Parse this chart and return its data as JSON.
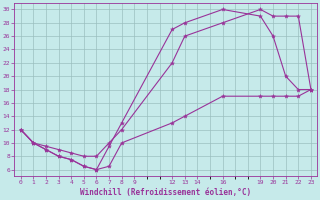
{
  "xlabel": "Windchill (Refroidissement éolien,°C)",
  "background_color": "#c6eaea",
  "line_color": "#993399",
  "grid_color": "#9bbfbf",
  "xlim": [
    -0.5,
    23.5
  ],
  "ylim": [
    5,
    31
  ],
  "xticks": [
    0,
    1,
    2,
    3,
    4,
    5,
    6,
    7,
    8,
    9,
    12,
    13,
    14,
    16,
    19,
    20,
    21,
    22,
    23
  ],
  "yticks": [
    6,
    8,
    10,
    12,
    14,
    16,
    18,
    20,
    22,
    24,
    26,
    28,
    30
  ],
  "curve1_x": [
    0,
    1,
    2,
    3,
    4,
    5,
    6,
    7,
    8,
    12,
    13,
    16,
    19,
    20,
    21,
    22,
    23
  ],
  "curve1_y": [
    12,
    10,
    9,
    8,
    7.5,
    6.5,
    6,
    9.5,
    13,
    27,
    28,
    30,
    29,
    26,
    20,
    18,
    18
  ],
  "curve2_x": [
    0,
    1,
    2,
    3,
    4,
    5,
    6,
    7,
    8,
    12,
    13,
    16,
    19,
    20,
    21,
    22,
    23
  ],
  "curve2_y": [
    12,
    10,
    9.5,
    9,
    8.5,
    8,
    8,
    10,
    12,
    22,
    26,
    28,
    30,
    29,
    29,
    29,
    18
  ],
  "curve3_x": [
    0,
    1,
    2,
    3,
    4,
    5,
    6,
    7,
    8,
    12,
    13,
    16,
    19,
    20,
    21,
    22,
    23
  ],
  "curve3_y": [
    12,
    10,
    9,
    8,
    7.5,
    6.5,
    6,
    6.5,
    10,
    13,
    14,
    17,
    17,
    17,
    17,
    17,
    18
  ],
  "figsize": [
    3.2,
    2.0
  ],
  "dpi": 100,
  "marker_size": 3,
  "line_width": 0.8,
  "tick_fontsize": 4.5,
  "xlabel_fontsize": 5.5
}
